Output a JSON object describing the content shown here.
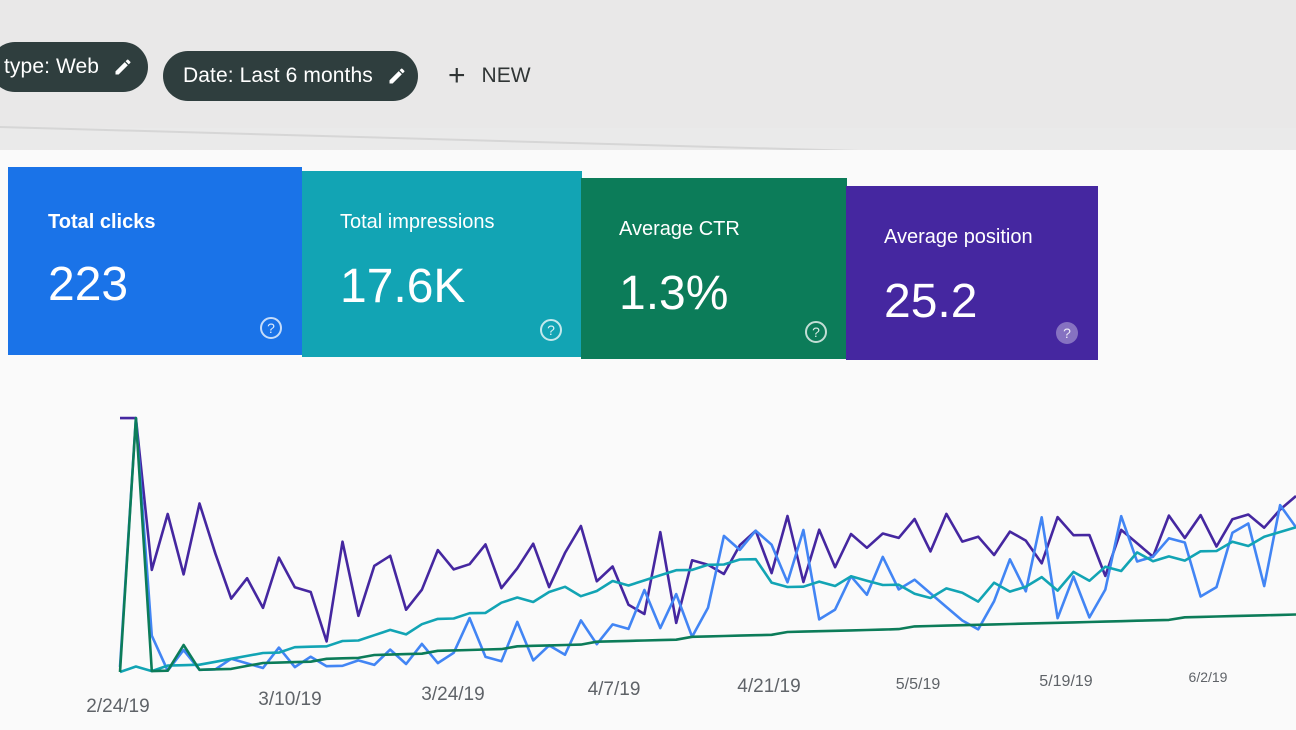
{
  "filters": {
    "search_type_label": "type: Web",
    "date_label": "Date: Last 6 months",
    "new_label": "NEW",
    "edit_icon": "pencil-icon",
    "add_icon": "plus-icon"
  },
  "metrics": [
    {
      "label": "Total clicks",
      "value": "223",
      "color": "#1a73e8"
    },
    {
      "label": "Total impressions",
      "value": "17.6K",
      "color": "#12a4b4"
    },
    {
      "label": "Average CTR",
      "value": "1.3%",
      "color": "#0c7c59"
    },
    {
      "label": "Average position",
      "value": "25.2",
      "color": "#4527a0"
    }
  ],
  "help_icon": "question-circle-icon",
  "chart_data": {
    "type": "line",
    "x_tick_labels": [
      "2/24/19",
      "3/10/19",
      "3/24/19",
      "4/7/19",
      "4/21/19",
      "5/5/19",
      "5/19/19",
      "6/2/19"
    ],
    "grid": false,
    "series": [
      {
        "color": "#4527a0",
        "values": [
          100,
          100,
          40,
          62,
          38,
          66,
          46,
          28,
          36,
          24,
          44,
          32,
          30,
          10,
          50,
          20,
          40,
          44,
          22,
          30,
          46,
          38,
          40,
          48,
          30,
          38,
          48,
          30,
          44,
          55,
          32,
          38,
          22,
          18,
          52,
          14,
          40,
          38,
          34,
          46,
          52,
          34,
          58,
          30,
          52,
          36,
          50,
          44,
          50,
          48,
          56,
          42,
          58,
          46,
          48,
          40,
          50,
          46,
          36,
          56,
          48,
          48,
          30,
          50,
          44,
          38,
          56,
          46,
          56,
          42,
          54,
          56,
          50,
          58,
          64
        ]
      },
      {
        "color": "#4285f4",
        "values": [
          2,
          100,
          14,
          0,
          8,
          0,
          0,
          4,
          2,
          0,
          8,
          0,
          4,
          0,
          0,
          2,
          0,
          6,
          0,
          8,
          0,
          4,
          18,
          2,
          0,
          16,
          0,
          6,
          2,
          16,
          6,
          14,
          12,
          28,
          12,
          26,
          8,
          20,
          50,
          44,
          52,
          46,
          30,
          52,
          14,
          18,
          32,
          24,
          40,
          26,
          30,
          24,
          18,
          12,
          8,
          20,
          38,
          24,
          56,
          12,
          30,
          12,
          24,
          56,
          36,
          38,
          46,
          44,
          20,
          24,
          48,
          52,
          24,
          60,
          50
        ]
      },
      {
        "color": "#12a4b4",
        "values": [
          0,
          2,
          0,
          2,
          2,
          2,
          3,
          4,
          5,
          6,
          6,
          8,
          8,
          8,
          10,
          10,
          12,
          14,
          12,
          16,
          18,
          18,
          20,
          20,
          24,
          26,
          24,
          28,
          30,
          26,
          28,
          32,
          30,
          32,
          34,
          36,
          36,
          38,
          38,
          40,
          40,
          30,
          28,
          28,
          30,
          28,
          32,
          30,
          28,
          28,
          24,
          22,
          26,
          24,
          20,
          28,
          24,
          26,
          30,
          24,
          32,
          28,
          34,
          32,
          40,
          36,
          38,
          36,
          40,
          40,
          44,
          42,
          46,
          48,
          50
        ]
      },
      {
        "color": "#0c7c59",
        "values": [
          0,
          100,
          0,
          0,
          10,
          0,
          0,
          0,
          1,
          2,
          2,
          2,
          2,
          3,
          3,
          3,
          4,
          4,
          4,
          4,
          5,
          5,
          5,
          5,
          5,
          6,
          6,
          6,
          6,
          6,
          7,
          7,
          7,
          7,
          7,
          7,
          8,
          8,
          8,
          8,
          8,
          8,
          9,
          9,
          9,
          9,
          9,
          9,
          9,
          9,
          10,
          10,
          10,
          10,
          10,
          10,
          10,
          10,
          10,
          10,
          10,
          10,
          10,
          10,
          10,
          10,
          10,
          11,
          11,
          11,
          11,
          11,
          11,
          11,
          11
        ]
      }
    ]
  }
}
